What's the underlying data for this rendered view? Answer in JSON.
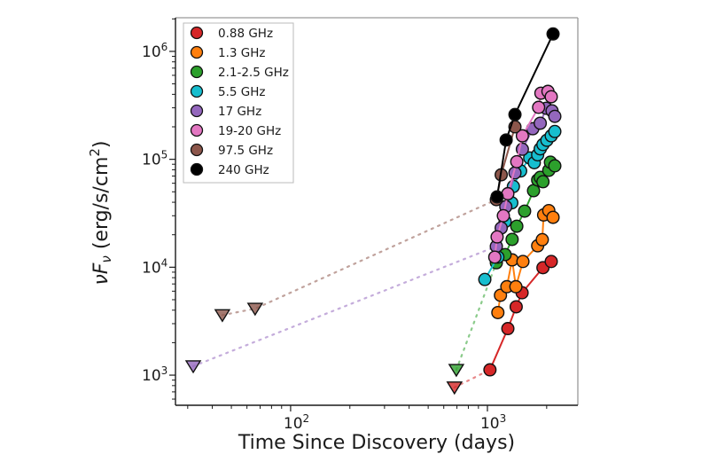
{
  "chart_data": {
    "type": "line",
    "title": "",
    "xlabel": "Time Since Discovery (days)",
    "ylabel": "νFν (erg/s/cm²)",
    "ylabel_parts": {
      "nu": "ν",
      "F": "F",
      "nu_sub": "ν",
      "unit_open": " (erg/s/cm",
      "sup": "2",
      "unit_close": ")"
    },
    "xscale": "log",
    "yscale": "log",
    "xlim": [
      26,
      2880
    ],
    "ylim": [
      526,
      2050000
    ],
    "grid": false,
    "legend_position": "upper left",
    "xticks": [
      {
        "value": 100,
        "base": "10",
        "exp": "2"
      },
      {
        "value": 1000,
        "base": "10",
        "exp": "3"
      }
    ],
    "yticks": [
      {
        "value": 1000,
        "base": "10",
        "exp": "3"
      },
      {
        "value": 10000,
        "base": "10",
        "exp": "4"
      },
      {
        "value": 100000,
        "base": "10",
        "exp": "5"
      },
      {
        "value": 1000000,
        "base": "10",
        "exp": "6"
      }
    ],
    "marker_note": "circles = detections, downward triangles = upper limits, dotted lines = gaps to early limits",
    "series": [
      {
        "name": "0.88 GHz",
        "color": "#d62728",
        "limits": [
          [
            680,
            770
          ]
        ],
        "dotted": [
          [
            680,
            770
          ],
          [
            1030,
            1120
          ]
        ],
        "points": [
          [
            1030,
            1120
          ],
          [
            1270,
            2700
          ],
          [
            1400,
            4300
          ],
          [
            1500,
            5800
          ],
          [
            1915,
            9900
          ],
          [
            2110,
            11300
          ]
        ]
      },
      {
        "name": "1.3 GHz",
        "color": "#ff7f0e",
        "limits": [],
        "dotted": [],
        "points": [
          [
            1130,
            3800
          ],
          [
            1165,
            5500
          ],
          [
            1255,
            6600
          ],
          [
            1335,
            11700
          ],
          [
            1395,
            6600
          ],
          [
            1515,
            11300
          ],
          [
            1800,
            15800
          ],
          [
            1900,
            18000
          ],
          [
            1930,
            30500
          ],
          [
            2050,
            33500
          ],
          [
            2155,
            29000
          ]
        ]
      },
      {
        "name": "2.1-2.5 GHz",
        "color": "#2ca02c",
        "limits": [
          [
            695,
            1120
          ]
        ],
        "dotted": [
          [
            695,
            1120
          ],
          [
            1110,
            11000
          ]
        ],
        "points": [
          [
            1110,
            11000
          ],
          [
            1230,
            13100
          ],
          [
            1335,
            18100
          ],
          [
            1410,
            24000
          ],
          [
            1545,
            33100
          ],
          [
            1715,
            51200
          ],
          [
            1800,
            64300
          ],
          [
            1855,
            68000
          ],
          [
            1915,
            62000
          ],
          [
            2050,
            79000
          ],
          [
            2090,
            94000
          ],
          [
            2200,
            87000
          ]
        ]
      },
      {
        "name": "5.5 GHz",
        "color": "#17becf",
        "limits": [],
        "dotted": [],
        "points": [
          [
            970,
            7700
          ],
          [
            1130,
            12400
          ],
          [
            1230,
            26500
          ],
          [
            1330,
            39500
          ],
          [
            1355,
            56000
          ],
          [
            1475,
            78000
          ],
          [
            1640,
            103000
          ],
          [
            1730,
            93000
          ],
          [
            1800,
            110000
          ],
          [
            1855,
            125000
          ],
          [
            1915,
            137000
          ],
          [
            2005,
            150000
          ],
          [
            2110,
            165000
          ],
          [
            2200,
            181000
          ]
        ]
      },
      {
        "name": "17 GHz",
        "color": "#9467bd",
        "limits": [
          [
            32,
            1210
          ]
        ],
        "dotted": [
          [
            32,
            1210
          ],
          [
            1110,
            15600
          ]
        ],
        "points": [
          [
            1110,
            15600
          ],
          [
            1175,
            23100
          ],
          [
            1240,
            36400
          ],
          [
            1380,
            74800
          ],
          [
            1505,
            124000
          ],
          [
            1700,
            192000
          ],
          [
            1855,
            216000
          ],
          [
            1990,
            297000
          ],
          [
            2130,
            281000
          ],
          [
            2200,
            250000
          ]
        ]
      },
      {
        "name": "19-20 GHz",
        "color": "#e377c2",
        "limits": [],
        "dotted": [],
        "points": [
          [
            1090,
            12400
          ],
          [
            1120,
            19100
          ],
          [
            1205,
            30000
          ],
          [
            1270,
            48000
          ],
          [
            1410,
            95000
          ],
          [
            1505,
            165000
          ],
          [
            1820,
            303000
          ],
          [
            1870,
            410000
          ],
          [
            2030,
            426000
          ],
          [
            2110,
            380000
          ]
        ]
      },
      {
        "name": "97.5 GHz",
        "color": "#8c564b",
        "limits": [
          [
            45,
            3600
          ],
          [
            66,
            4130
          ]
        ],
        "dotted": [
          [
            45,
            3600
          ],
          [
            66,
            4130
          ],
          [
            1110,
            42300
          ]
        ],
        "points": [
          [
            1110,
            42300
          ],
          [
            1175,
            71900
          ],
          [
            1380,
            200000
          ]
        ]
      },
      {
        "name": "240 GHz",
        "color": "#000000",
        "limits": [],
        "dotted": [],
        "points": [
          [
            1120,
            44900
          ],
          [
            1245,
            151000
          ],
          [
            1380,
            260000
          ],
          [
            2155,
            1450000
          ]
        ]
      }
    ]
  }
}
